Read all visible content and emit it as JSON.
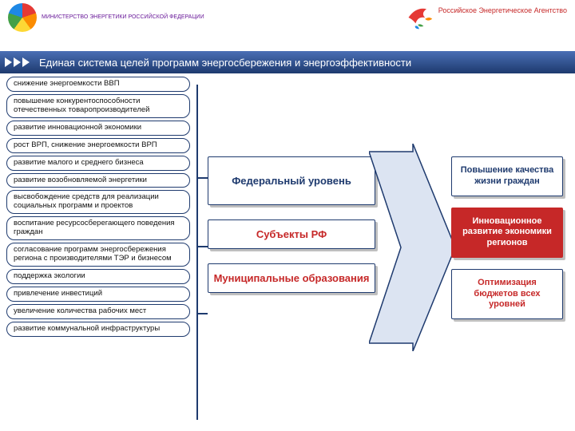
{
  "header": {
    "left_logo_text": "МИНИСТЕРСТВО ЭНЕРГЕТИКИ\nРОССИЙСКОЙ ФЕДЕРАЦИИ",
    "right_logo_text": "Российское\nЭнергетическое\nАгентство"
  },
  "title": "Единая система целей программ энергосбережения и энергоэффективности",
  "left_goals": [
    "снижение энергоемкости ВВП",
    "повышение конкурентоспособности отечественных товаропроизводителей",
    "развитие инновационной экономики",
    "рост ВРП, снижение энергоемкости ВРП",
    "развитие малого и среднего бизнеса",
    "развитие возобновляемой энергетики",
    "высвобождение средств для реализации социальных программ и проектов",
    "воспитание ресурсосберегающего поведения граждан",
    "согласование программ энергосбережения региона с производителями ТЭР и бизнесом",
    "поддержка экологии",
    "привлечение инвестиций",
    "увеличение количества рабочих мест",
    "развитие коммунальной инфраструктуры"
  ],
  "levels": [
    {
      "label": "Федеральный уровень",
      "color": "#1e3a6e"
    },
    {
      "label": "Субъекты РФ",
      "color": "#c62828"
    },
    {
      "label": "Муниципальные образования",
      "color": "#c62828"
    }
  ],
  "results": [
    {
      "label": "Повышение качества жизни граждан",
      "color": "#1e3a6e",
      "bg": "#ffffff"
    },
    {
      "label": "Инновационное развитие экономики регионов",
      "color": "#ffffff",
      "bg": "#c62828",
      "border": "#c62828"
    },
    {
      "label": "Оптимизация бюджетов всех уровней",
      "color": "#c62828",
      "bg": "#ffffff",
      "border": "#1e3a6e"
    }
  ],
  "colors": {
    "title_bar_top": "#4a6fb5",
    "title_bar_bottom": "#1e3a6e",
    "box_border": "#1e3a6e",
    "arrow_fill": "#dce4f2",
    "arrow_stroke": "#1e3a6e"
  }
}
